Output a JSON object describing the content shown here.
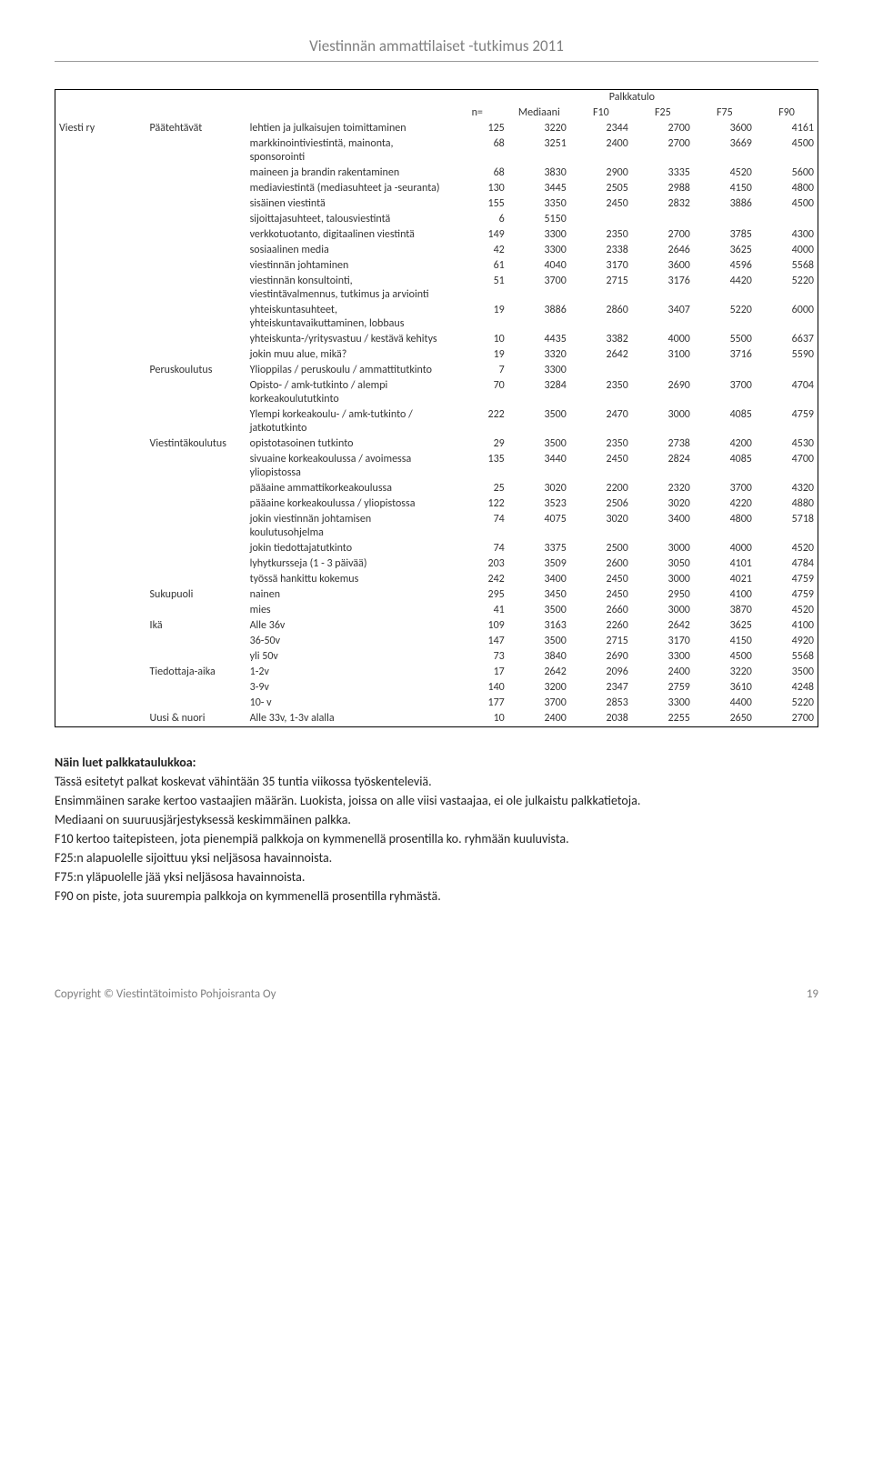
{
  "header": {
    "title": "Viestinnän ammattilaiset -tutkimus 2011"
  },
  "table": {
    "super_header": "Palkkatulo",
    "columns": [
      "n=",
      "Mediaani",
      "F10",
      "F25",
      "F75",
      "F90"
    ],
    "group1_labels": {
      "viesti_ry": "Viesti ry"
    },
    "group2_labels": {
      "paatehtavat": "Päätehtävät",
      "peruskoulutus": "Peruskoulutus",
      "viestintakoulutus": "Viestintäkoulutus",
      "sukupuoli": "Sukupuoli",
      "ika": "Ikä",
      "tiedottaja_aika": "Tiedottaja-aika",
      "uusi_nuori": "Uusi & nuori"
    },
    "rows": [
      {
        "g1": "viesti_ry",
        "g2": "paatehtavat",
        "label": "lehtien ja julkaisujen toimittaminen",
        "n": "125",
        "med": "3220",
        "f10": "2344",
        "f25": "2700",
        "f75": "3600",
        "f90": "4161"
      },
      {
        "label": "markkinointiviestintä, mainonta, sponsorointi",
        "n": "68",
        "med": "3251",
        "f10": "2400",
        "f25": "2700",
        "f75": "3669",
        "f90": "4500"
      },
      {
        "label": "maineen ja brandin rakentaminen",
        "n": "68",
        "med": "3830",
        "f10": "2900",
        "f25": "3335",
        "f75": "4520",
        "f90": "5600"
      },
      {
        "label": "mediaviestintä (mediasuhteet ja -seuranta)",
        "n": "130",
        "med": "3445",
        "f10": "2505",
        "f25": "2988",
        "f75": "4150",
        "f90": "4800"
      },
      {
        "label": "sisäinen viestintä",
        "n": "155",
        "med": "3350",
        "f10": "2450",
        "f25": "2832",
        "f75": "3886",
        "f90": "4500"
      },
      {
        "label": "sijoittajasuhteet, talousviestintä",
        "n": "6",
        "med": "5150",
        "f10": "",
        "f25": "",
        "f75": "",
        "f90": ""
      },
      {
        "label": "verkkotuotanto, digitaalinen viestintä",
        "n": "149",
        "med": "3300",
        "f10": "2350",
        "f25": "2700",
        "f75": "3785",
        "f90": "4300"
      },
      {
        "label": "sosiaalinen media",
        "n": "42",
        "med": "3300",
        "f10": "2338",
        "f25": "2646",
        "f75": "3625",
        "f90": "4000"
      },
      {
        "label": "viestinnän johtaminen",
        "n": "61",
        "med": "4040",
        "f10": "3170",
        "f25": "3600",
        "f75": "4596",
        "f90": "5568"
      },
      {
        "label": "viestinnän konsultointi, viestintävalmennus, tutkimus ja arviointi",
        "n": "51",
        "med": "3700",
        "f10": "2715",
        "f25": "3176",
        "f75": "4420",
        "f90": "5220"
      },
      {
        "label": "yhteiskuntasuhteet, yhteiskuntavaikuttaminen, lobbaus",
        "n": "19",
        "med": "3886",
        "f10": "2860",
        "f25": "3407",
        "f75": "5220",
        "f90": "6000"
      },
      {
        "label": "yhteiskunta-/yritysvastuu / kestävä kehitys",
        "n": "10",
        "med": "4435",
        "f10": "3382",
        "f25": "4000",
        "f75": "5500",
        "f90": "6637"
      },
      {
        "label": "jokin muu alue, mikä?",
        "n": "19",
        "med": "3320",
        "f10": "2642",
        "f25": "3100",
        "f75": "3716",
        "f90": "5590"
      },
      {
        "g2": "peruskoulutus",
        "label": "Ylioppilas / peruskoulu / ammattitutkinto",
        "n": "7",
        "med": "3300",
        "f10": "",
        "f25": "",
        "f75": "",
        "f90": ""
      },
      {
        "label": "Opisto- / amk-tutkinto / alempi korkeakoulututkinto",
        "n": "70",
        "med": "3284",
        "f10": "2350",
        "f25": "2690",
        "f75": "3700",
        "f90": "4704"
      },
      {
        "label": "Ylempi korkeakoulu- / amk-tutkinto / jatkotutkinto",
        "n": "222",
        "med": "3500",
        "f10": "2470",
        "f25": "3000",
        "f75": "4085",
        "f90": "4759"
      },
      {
        "g2": "viestintakoulutus",
        "label": "opistotasoinen tutkinto",
        "n": "29",
        "med": "3500",
        "f10": "2350",
        "f25": "2738",
        "f75": "4200",
        "f90": "4530"
      },
      {
        "label": "sivuaine korkeakoulussa / avoimessa yliopistossa",
        "n": "135",
        "med": "3440",
        "f10": "2450",
        "f25": "2824",
        "f75": "4085",
        "f90": "4700"
      },
      {
        "label": "pääaine ammattikorkeakoulussa",
        "n": "25",
        "med": "3020",
        "f10": "2200",
        "f25": "2320",
        "f75": "3700",
        "f90": "4320"
      },
      {
        "label": "pääaine korkeakoulussa / yliopistossa",
        "n": "122",
        "med": "3523",
        "f10": "2506",
        "f25": "3020",
        "f75": "4220",
        "f90": "4880"
      },
      {
        "label": "jokin viestinnän johtamisen koulutusohjelma",
        "n": "74",
        "med": "4075",
        "f10": "3020",
        "f25": "3400",
        "f75": "4800",
        "f90": "5718"
      },
      {
        "label": "jokin tiedottajatutkinto",
        "n": "74",
        "med": "3375",
        "f10": "2500",
        "f25": "3000",
        "f75": "4000",
        "f90": "4520"
      },
      {
        "label": "lyhytkursseja (1 - 3 päivää)",
        "n": "203",
        "med": "3509",
        "f10": "2600",
        "f25": "3050",
        "f75": "4101",
        "f90": "4784"
      },
      {
        "label": "työssä hankittu kokemus",
        "n": "242",
        "med": "3400",
        "f10": "2450",
        "f25": "3000",
        "f75": "4021",
        "f90": "4759"
      },
      {
        "g2": "sukupuoli",
        "label": "nainen",
        "n": "295",
        "med": "3450",
        "f10": "2450",
        "f25": "2950",
        "f75": "4100",
        "f90": "4759"
      },
      {
        "label": "mies",
        "n": "41",
        "med": "3500",
        "f10": "2660",
        "f25": "3000",
        "f75": "3870",
        "f90": "4520"
      },
      {
        "g2": "ika",
        "label": "Alle 36v",
        "n": "109",
        "med": "3163",
        "f10": "2260",
        "f25": "2642",
        "f75": "3625",
        "f90": "4100"
      },
      {
        "label": "36-50v",
        "n": "147",
        "med": "3500",
        "f10": "2715",
        "f25": "3170",
        "f75": "4150",
        "f90": "4920"
      },
      {
        "label": "yli 50v",
        "n": "73",
        "med": "3840",
        "f10": "2690",
        "f25": "3300",
        "f75": "4500",
        "f90": "5568"
      },
      {
        "g2": "tiedottaja_aika",
        "label": "1-2v",
        "n": "17",
        "med": "2642",
        "f10": "2096",
        "f25": "2400",
        "f75": "3220",
        "f90": "3500"
      },
      {
        "label": "3-9v",
        "n": "140",
        "med": "3200",
        "f10": "2347",
        "f25": "2759",
        "f75": "3610",
        "f90": "4248"
      },
      {
        "label": "10- v",
        "n": "177",
        "med": "3700",
        "f10": "2853",
        "f25": "3300",
        "f75": "4400",
        "f90": "5220"
      },
      {
        "g2": "uusi_nuori",
        "label": "Alle 33v, 1-3v alalla",
        "n": "10",
        "med": "2400",
        "f10": "2038",
        "f25": "2255",
        "f75": "2650",
        "f90": "2700"
      }
    ]
  },
  "notes": {
    "heading": "Näin luet palkkataulukkoa:",
    "lines": [
      "Tässä esitetyt palkat koskevat vähintään 35 tuntia viikossa työskenteleviä.",
      "Ensimmäinen sarake kertoo vastaajien määrän. Luokista, joissa on alle viisi vastaajaa, ei ole julkaistu palkkatietoja.",
      "Mediaani on suuruusjärjestyksessä keskimmäinen palkka.",
      "F10 kertoo taitepisteen, jota pienempiä palkkoja on kymmenellä prosentilla ko. ryhmään kuuluvista.",
      "F25:n alapuolelle sijoittuu yksi neljäsosa havainnoista.",
      "F75:n yläpuolelle jää yksi neljäsosa havainnoista.",
      "F90 on piste, jota suurempia palkkoja on kymmenellä prosentilla ryhmästä."
    ]
  },
  "footer": {
    "copyright": "Copyright © Viestintätoimisto Pohjoisranta Oy",
    "page": "19"
  }
}
